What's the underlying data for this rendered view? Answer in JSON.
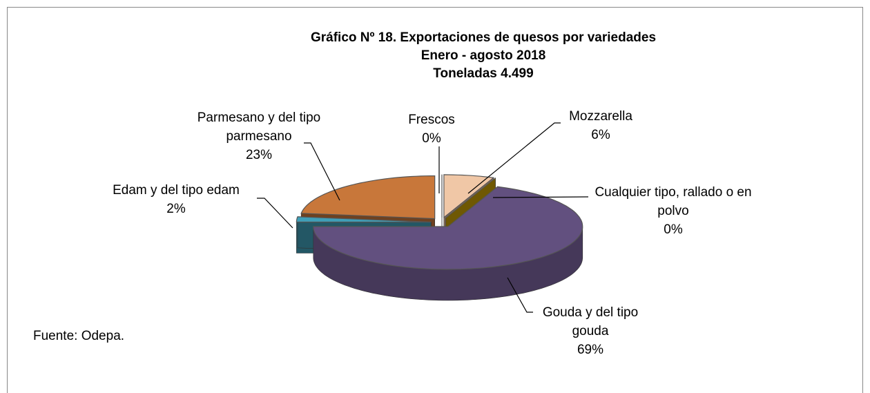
{
  "chart_data": {
    "type": "pie3d",
    "title": [
      "Gráfico Nº 18. Exportaciones de quesos por variedades",
      "Enero - agosto 2018",
      "Toneladas 4.499"
    ],
    "categories": [
      "Mozzarella",
      "Cualquier tipo, rallado o en polvo",
      "Gouda y del tipo gouda",
      "Edam y del tipo edam",
      "Parmesano y del tipo parmesano",
      "Frescos"
    ],
    "values": [
      6,
      0,
      69,
      2,
      23,
      0
    ],
    "value_labels": [
      "6%",
      "0%",
      "69%",
      "2%",
      "23%",
      "0%"
    ],
    "colors": [
      "#f0c7a6",
      "#c9a006",
      "#62507f",
      "#3f9fb8",
      "#c8773a",
      "#ffffff"
    ],
    "source": "Fuente: Odepa."
  }
}
